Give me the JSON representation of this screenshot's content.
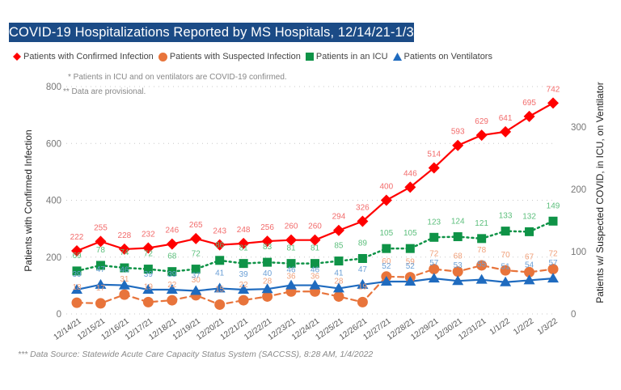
{
  "title": "COVID-19 Hospitalizations Reported by MS Hospitals, 12/14/21-1/3/22 *,**,***",
  "source_note": "*** Data Source: Statewide Acute Care Capacity Status System (SACCSS), 8:28 AM, 1/4/2022",
  "colors": {
    "title_bg": "#1b4b86",
    "confirmed": "#ff0000",
    "confirmed_label": "#f26b6b",
    "suspected": "#e8743b",
    "suspected_label": "#f0a07a",
    "icu": "#0f9347",
    "icu_label": "#5cbf7c",
    "ventilators": "#1f6bbf",
    "ventilators_label": "#6a9fd6"
  },
  "chart_data": {
    "type": "line",
    "title": "COVID-19 Hospitalizations Reported by MS Hospitals, 12/14/21-1/3/22 *,**,***",
    "annotations": [
      "* Patients in ICU and on ventilators are COVID-19 confirmed.",
      "** Data are provisional."
    ],
    "x": [
      "12/14/21",
      "12/15/21",
      "12/16/21",
      "12/17/21",
      "12/18/21",
      "12/19/21",
      "12/20/21",
      "12/21/21",
      "12/22/21",
      "12/23/21",
      "12/24/21",
      "12/25/21",
      "12/26/21",
      "12/27/21",
      "12/28/21",
      "12/29/21",
      "12/30/21",
      "12/31/21",
      "1/1/22",
      "1/2/22",
      "1/3/22"
    ],
    "ylabel": "Patients with Confirmed Infection",
    "ylabel_right": "Patients w/ Suspected COVID, in ICU, on Ventilator",
    "ylim": [
      0,
      800
    ],
    "yticks": [
      0,
      200,
      400,
      600,
      800
    ],
    "ylim_right": [
      0,
      365
    ],
    "yticks_right": [
      0,
      100,
      200,
      300
    ],
    "grid": true,
    "legend_position": "top-left",
    "series": [
      {
        "name": "Patients with Confirmed Infection",
        "axis": "left",
        "marker": "diamond",
        "style": "solid",
        "values": [
          222,
          255,
          228,
          232,
          246,
          265,
          243,
          248,
          256,
          260,
          260,
          294,
          326,
          400,
          446,
          514,
          593,
          629,
          641,
          695,
          742
        ]
      },
      {
        "name": "Patients with Suspected Infection",
        "axis": "right",
        "marker": "circle",
        "style": "dashed",
        "values": [
          18,
          17,
          31,
          19,
          22,
          30,
          15,
          22,
          28,
          36,
          36,
          28,
          19,
          60,
          59,
          72,
          68,
          78,
          70,
          67,
          72
        ]
      },
      {
        "name": "Patients in an ICU",
        "axis": "right",
        "marker": "square",
        "style": "dotted",
        "values": [
          69,
          78,
          74,
          72,
          68,
          72,
          86,
          81,
          83,
          81,
          81,
          85,
          89,
          105,
          105,
          123,
          124,
          121,
          133,
          132,
          149
        ]
      },
      {
        "name": "Patients on Ventilators",
        "axis": "right",
        "marker": "triangle",
        "style": "solid",
        "values": [
          39,
          47,
          46,
          39,
          39,
          37,
          41,
          39,
          40,
          46,
          46,
          41,
          47,
          52,
          52,
          57,
          53,
          55,
          51,
          54,
          57
        ]
      }
    ]
  }
}
